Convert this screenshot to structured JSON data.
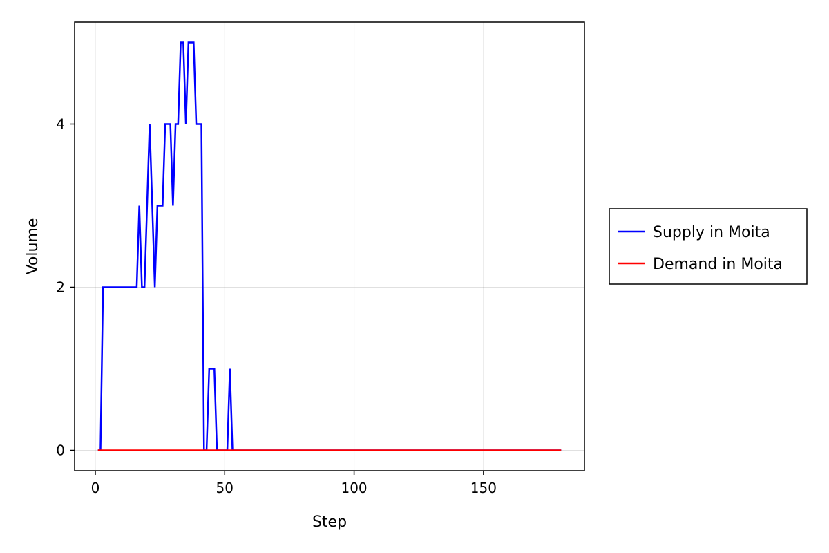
{
  "chart_data": {
    "type": "line",
    "xlabel": "Step",
    "ylabel": "Volume",
    "xlim": [
      -8,
      189
    ],
    "ylim": [
      -0.25,
      5.25
    ],
    "xticks": [
      0,
      50,
      100,
      150
    ],
    "yticks": [
      0,
      2,
      4
    ],
    "grid": true,
    "legend_position": "right",
    "series": [
      {
        "name": "Supply in Moita",
        "color": "#0000ff",
        "x": [
          1,
          2,
          3,
          4,
          5,
          6,
          7,
          8,
          9,
          10,
          11,
          12,
          13,
          14,
          15,
          16,
          17,
          18,
          19,
          20,
          21,
          22,
          23,
          24,
          25,
          26,
          27,
          28,
          29,
          30,
          31,
          32,
          33,
          34,
          35,
          36,
          37,
          38,
          39,
          40,
          41,
          42,
          43,
          44,
          45,
          46,
          47,
          48,
          49,
          50,
          51,
          52,
          53,
          54,
          55,
          56,
          57,
          58,
          59,
          60,
          65,
          70,
          80,
          90,
          100,
          110,
          120,
          130,
          140,
          150,
          160,
          170,
          180
        ],
        "y": [
          0,
          0,
          2,
          2,
          2,
          2,
          2,
          2,
          2,
          2,
          2,
          2,
          2,
          2,
          2,
          2,
          3,
          2,
          2,
          3,
          4,
          3,
          2,
          3,
          3,
          3,
          4,
          4,
          4,
          3,
          4,
          4,
          5,
          5,
          4,
          5,
          5,
          5,
          4,
          4,
          4,
          0,
          0,
          1,
          1,
          1,
          0,
          0,
          0,
          0,
          0,
          1,
          0,
          0,
          0,
          0,
          0,
          0,
          0,
          0,
          0,
          0,
          0,
          0,
          0,
          0,
          0,
          0,
          0,
          0,
          0,
          0,
          0
        ]
      },
      {
        "name": "Demand in Moita",
        "color": "#ff0000",
        "x": [
          1,
          180
        ],
        "y": [
          0,
          0
        ]
      }
    ]
  }
}
